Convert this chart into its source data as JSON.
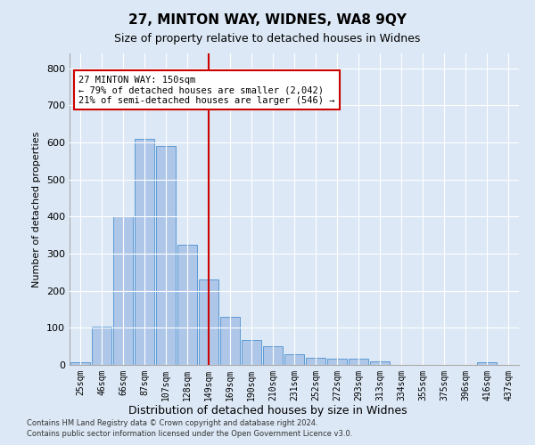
{
  "title": "27, MINTON WAY, WIDNES, WA8 9QY",
  "subtitle": "Size of property relative to detached houses in Widnes",
  "xlabel": "Distribution of detached houses by size in Widnes",
  "ylabel": "Number of detached properties",
  "bar_color": "#aec6e8",
  "bar_edge_color": "#5b9bd5",
  "background_color": "#dce8f5",
  "grid_color": "#ffffff",
  "categories": [
    "25sqm",
    "46sqm",
    "66sqm",
    "87sqm",
    "107sqm",
    "128sqm",
    "149sqm",
    "169sqm",
    "190sqm",
    "210sqm",
    "231sqm",
    "252sqm",
    "272sqm",
    "293sqm",
    "313sqm",
    "334sqm",
    "355sqm",
    "375sqm",
    "396sqm",
    "416sqm",
    "437sqm"
  ],
  "values": [
    8,
    103,
    400,
    610,
    590,
    325,
    230,
    130,
    68,
    50,
    28,
    20,
    18,
    18,
    10,
    0,
    0,
    0,
    0,
    8,
    0
  ],
  "ylim": [
    0,
    840
  ],
  "yticks": [
    0,
    100,
    200,
    300,
    400,
    500,
    600,
    700,
    800
  ],
  "vline_x": 6,
  "vline_color": "#cc0000",
  "annotation_text": "27 MINTON WAY: 150sqm\n← 79% of detached houses are smaller (2,042)\n21% of semi-detached houses are larger (546) →",
  "annotation_box_color": "#ffffff",
  "annotation_box_edge": "#cc0000",
  "footer1": "Contains HM Land Registry data © Crown copyright and database right 2024.",
  "footer2": "Contains public sector information licensed under the Open Government Licence v3.0."
}
